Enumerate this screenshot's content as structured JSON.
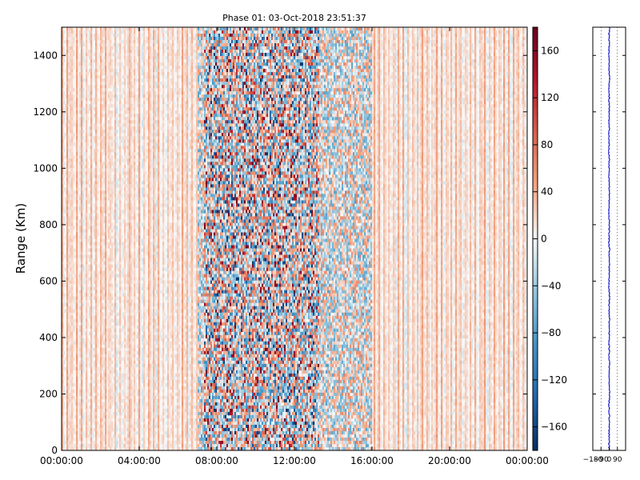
{
  "chart_data": [
    {
      "type": "heatmap",
      "title": "Phase 01: 03-Oct-2018 23:51:37",
      "ylabel": "Range (Km)",
      "xlabel": "",
      "x_range": [
        "00:00:00",
        "24:00:00"
      ],
      "ylim": [
        0,
        1500
      ],
      "x_ticks": [
        "00:00:00",
        "04:00:00",
        "08:00:00",
        "12:00:00",
        "16:00:00",
        "20:00:00",
        "00:00:00"
      ],
      "y_ticks": [
        0,
        200,
        400,
        600,
        800,
        1000,
        1200,
        1400
      ],
      "colormap": "RdBu_r",
      "colorbar": {
        "range": [
          -180,
          180
        ],
        "ticks": [
          "160",
          "120",
          "80",
          "40",
          "0",
          "−40",
          "−80",
          "−120",
          "−160"
        ],
        "tick_values": [
          160,
          120,
          80,
          40,
          0,
          -40,
          -80,
          -120,
          -160
        ],
        "colors": {
          "min": "#053061",
          "mid": "#f7f7f7",
          "max": "#67001f"
        }
      },
      "activity_window": {
        "start_hour": 7,
        "end_hour": 16,
        "peak_start_hour": 7.3,
        "peak_end_hour": 13.3
      },
      "grid": false
    },
    {
      "type": "line",
      "title": "",
      "x_ticks": [
        "−180",
        "−90",
        "0",
        "90"
      ],
      "xlim": [
        -180,
        180
      ],
      "ylim": [
        0,
        1500
      ],
      "mean_phase": 0,
      "line_color": "#0000cc",
      "grid": true
    }
  ]
}
